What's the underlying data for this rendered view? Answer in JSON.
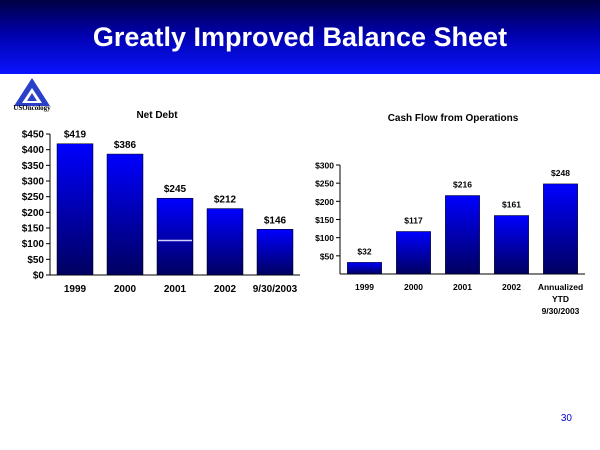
{
  "slide": {
    "title": "Greatly Improved Balance Sheet",
    "logo_text": "USOncology",
    "page_number": "30"
  },
  "colors": {
    "bar_top": "#0000ff",
    "bar_bottom": "#000060",
    "banner_top": "#000044",
    "banner_bottom": "#0a14ff",
    "page_number": "#0000cc"
  },
  "chart_data": [
    {
      "type": "bar",
      "title": "Net Debt",
      "categories": [
        "1999",
        "2000",
        "2001",
        "2002",
        "9/30/2003"
      ],
      "values": [
        419,
        386,
        245,
        212,
        146
      ],
      "data_labels": [
        "$419",
        "$386",
        "$245",
        "$212",
        "$146"
      ],
      "yticks": [
        0,
        50,
        100,
        150,
        200,
        250,
        300,
        350,
        400,
        450
      ],
      "ytick_labels": [
        "$0",
        "$50",
        "$100",
        "$150",
        "$200",
        "$250",
        "$300",
        "$350",
        "$400",
        "$450"
      ],
      "ylim": [
        0,
        450
      ],
      "annotation_line": {
        "category": "2001",
        "value": 110
      },
      "grid": false,
      "legend": "none"
    },
    {
      "type": "bar",
      "title": "Cash Flow from Operations",
      "categories": [
        [
          "1999"
        ],
        [
          "2000"
        ],
        [
          "2001"
        ],
        [
          "2002"
        ],
        [
          "Annualized",
          "YTD",
          "9/30/2003"
        ]
      ],
      "values": [
        32,
        117,
        216,
        161,
        248
      ],
      "data_labels": [
        "$32",
        "$117",
        "$216",
        "$161",
        "$248"
      ],
      "yticks": [
        50,
        100,
        150,
        200,
        250,
        300
      ],
      "ytick_labels": [
        "$50",
        "$100",
        "$150",
        "$200",
        "$250",
        "$300"
      ],
      "ylim": [
        0,
        300
      ],
      "grid": false,
      "legend": "none"
    }
  ]
}
